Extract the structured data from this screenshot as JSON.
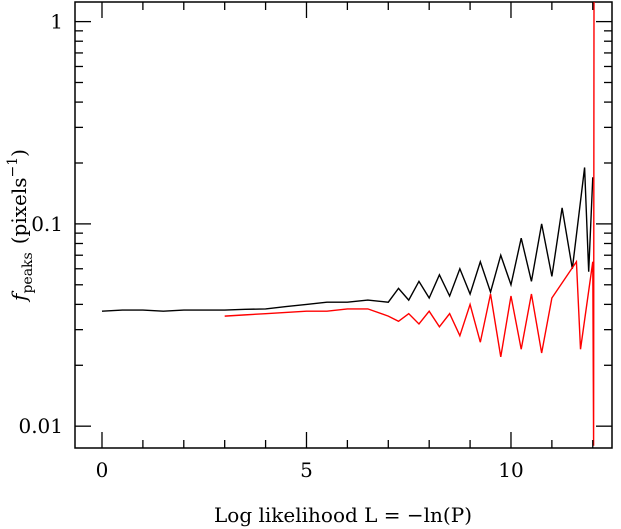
{
  "chart_data": {
    "type": "line",
    "x_label": "Log likelihood L = −ln(P)",
    "y_label": {
      "symbol": "f",
      "subscript": "peaks",
      "unit": "(pixels",
      "exponent": "−1",
      "close": ")"
    },
    "log_y": true,
    "xlim": [
      -0.66,
      12.47
    ],
    "ylim": [
      0.0078,
      1.25
    ],
    "xticks": [
      0,
      5,
      10
    ],
    "xminor_ticks": [
      1,
      2,
      3,
      4,
      6,
      7,
      8,
      9,
      11,
      12
    ],
    "yticks": [
      0.01,
      0.1,
      1
    ],
    "yminor_ticks": [
      0.02,
      0.03,
      0.04,
      0.05,
      0.06,
      0.07,
      0.08,
      0.09,
      0.2,
      0.3,
      0.4,
      0.5,
      0.6,
      0.7,
      0.8,
      0.9
    ],
    "series": [
      {
        "color": "#000000",
        "x": [
          0,
          0.5,
          1,
          1.5,
          2,
          2.5,
          3,
          3.5,
          4,
          4.5,
          5,
          5.5,
          6,
          6.5,
          7,
          7.25,
          7.5,
          7.75,
          8,
          8.25,
          8.5,
          8.75,
          9,
          9.25,
          9.5,
          9.75,
          10,
          10.25,
          10.5,
          10.75,
          11,
          11.25,
          11.5,
          11.8,
          11.9,
          12
        ],
        "values": [
          0.037,
          0.0375,
          0.0375,
          0.037,
          0.0375,
          0.0375,
          0.0375,
          0.0378,
          0.038,
          0.039,
          0.04,
          0.041,
          0.041,
          0.042,
          0.041,
          0.048,
          0.042,
          0.052,
          0.043,
          0.056,
          0.044,
          0.06,
          0.045,
          0.065,
          0.046,
          0.07,
          0.05,
          0.085,
          0.052,
          0.1,
          0.055,
          0.12,
          0.06,
          0.19,
          0.058,
          0.17
        ]
      },
      {
        "color": "#ff0000",
        "x": [
          3,
          3.5,
          4,
          4.5,
          5,
          5.5,
          6,
          6.5,
          7,
          7.25,
          7.5,
          7.75,
          8,
          8.25,
          8.5,
          8.75,
          9,
          9.25,
          9.5,
          9.75,
          10,
          10.25,
          10.5,
          10.75,
          11,
          11.6,
          11.7,
          12,
          12.02,
          12.03
        ],
        "values": [
          0.035,
          0.0355,
          0.036,
          0.0365,
          0.037,
          0.037,
          0.038,
          0.038,
          0.035,
          0.033,
          0.036,
          0.032,
          0.037,
          0.031,
          0.036,
          0.028,
          0.04,
          0.026,
          0.045,
          0.022,
          0.044,
          0.024,
          0.045,
          0.023,
          0.043,
          0.065,
          0.024,
          0.065,
          0.008,
          1.25
        ]
      }
    ]
  }
}
